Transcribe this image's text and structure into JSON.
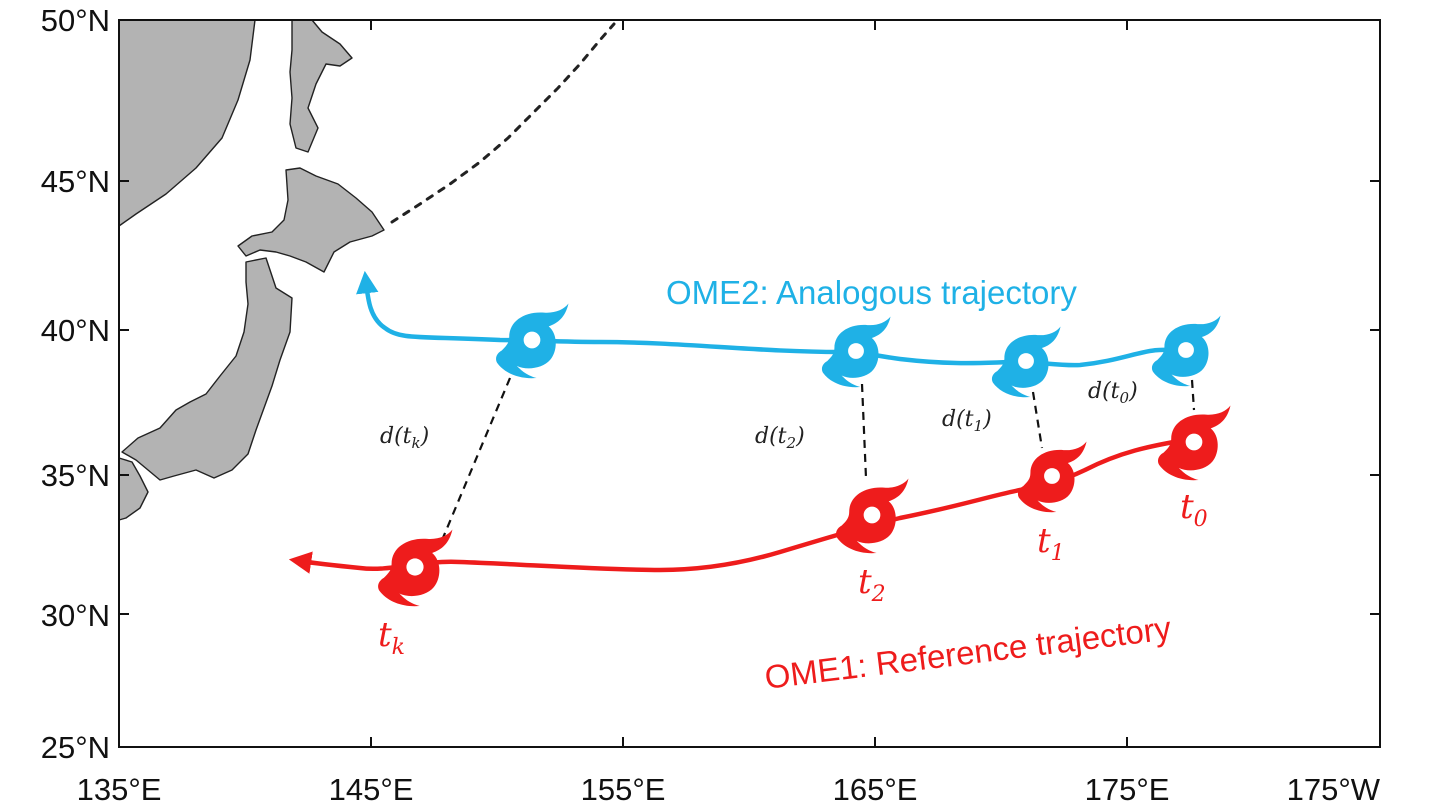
{
  "map": {
    "x_ticks": [
      "135°E",
      "145°E",
      "155°E",
      "165°E",
      "175°E",
      "175°W"
    ],
    "y_ticks": [
      "50°N",
      "45°N",
      "40°N",
      "35°N",
      "30°N",
      "25°N"
    ]
  },
  "tracks": {
    "analogous": {
      "title": "OME2: Analogous trajectory",
      "color": "#1fb1e6",
      "typhoons": [
        {
          "lon": 151.6,
          "lat": 39.6
        },
        {
          "lon": 164.6,
          "lat": 39.3
        },
        {
          "lon": 171.2,
          "lat": 38.9
        },
        {
          "lon": 177.9,
          "lat": 39.2
        }
      ]
    },
    "reference": {
      "title": "OME1: Reference trajectory",
      "color": "#ee1c1c",
      "typhoons": [
        {
          "lon": 146.9,
          "lat": 31.6,
          "time": "tk",
          "time_base": "t",
          "time_sub": "k"
        },
        {
          "lon": 165.2,
          "lat": 33.5,
          "time": "t2",
          "time_base": "t",
          "time_sub": "2"
        },
        {
          "lon": 172.2,
          "lat": 34.9,
          "time": "t1",
          "time_base": "t",
          "time_sub": "1"
        },
        {
          "lon": 178.3,
          "lat": 36.1,
          "time": "t0",
          "time_base": "t",
          "time_sub": "0"
        }
      ]
    }
  },
  "distances": [
    {
      "label": "d(t0)",
      "text": "d(t",
      "sub": "0",
      "close": ")"
    },
    {
      "label": "d(t1)",
      "text": "d(t",
      "sub": "1",
      "close": ")"
    },
    {
      "label": "d(t2)",
      "text": "d(t",
      "sub": "2",
      "close": ")"
    },
    {
      "label": "d(tk)",
      "text": "d(t",
      "sub": "k",
      "close": ")"
    }
  ],
  "icons": [
    "typhoon-icon",
    "arrow-icon"
  ]
}
